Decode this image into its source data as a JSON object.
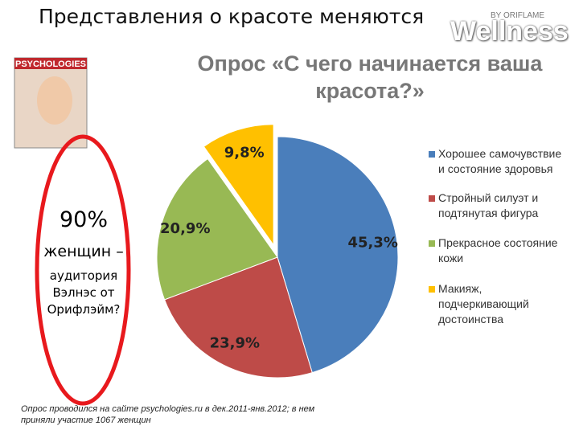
{
  "slide": {
    "title": "Представления о красоте меняются",
    "logo": "Wellness",
    "logo_sub": "BY ORIFLAME",
    "magazine": "PSYCHOLOGIES",
    "big_number": "90%",
    "callout_line1": "женщин –",
    "callout_line2": "аудитория Вэлнэс от Орифлэйм?",
    "footnote": "Опрос проводился на сайте psychologies.ru в дек.2011-янв.2012; в нем приняли участие 1067 женщин"
  },
  "chart_data": {
    "type": "pie",
    "title": "Опрос «С чего начинается ваша красота?»",
    "categories": [
      "Хорошее самочувствие и состояние здоровья",
      "Стройный силуэт и подтянутая фигура",
      "Прекрасное состояние кожи",
      "Макияж, подчеркивающий достоинства"
    ],
    "values": [
      45.3,
      23.9,
      20.9,
      9.8
    ],
    "value_labels": [
      "45,3%",
      "23,9%",
      "20,9%",
      "9,8%"
    ],
    "colors": [
      "#4a7ebb",
      "#be4b48",
      "#98b954",
      "#ffc000"
    ],
    "explode": [
      false,
      false,
      false,
      true
    ]
  }
}
